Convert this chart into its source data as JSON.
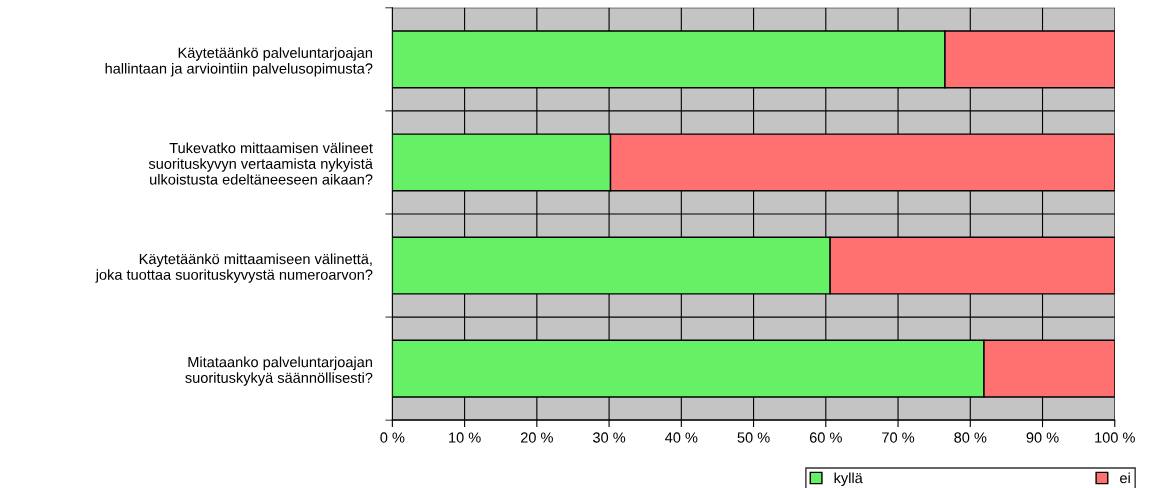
{
  "chart_data": {
    "type": "bar",
    "orientation": "horizontal",
    "stacked": true,
    "categories": [
      "Käytetäänkö palveluntarjoajan\nhallintaan ja arviointiin palvelusopimusta?",
      "Tukevatko mittaamisen välineet\nsuorituskyvyn vertaamista nykyistä\nulkoistusta edeltäneeseen aikaan?",
      "Käytetäänkö mittaamiseen välinettä,\njoka tuottaa suorituskyvystä numeroarvon?",
      "Mitataanko palveluntarjoajan\nsuorituskykyä säännöllisesti?"
    ],
    "series": [
      {
        "name": "kyllä",
        "color": "#66f066",
        "values": [
          76.5,
          30.2,
          60.6,
          81.9
        ]
      },
      {
        "name": "ei",
        "color": "#ff7070",
        "values": [
          23.5,
          69.8,
          39.4,
          18.1
        ]
      }
    ],
    "xlim": [
      0,
      100
    ],
    "xticks": [
      {
        "value": 0,
        "label": "0 %"
      },
      {
        "value": 10,
        "label": "10 %"
      },
      {
        "value": 20,
        "label": "20 %"
      },
      {
        "value": 30,
        "label": "30 %"
      },
      {
        "value": 40,
        "label": "40 %"
      },
      {
        "value": 50,
        "label": "50 %"
      },
      {
        "value": 60,
        "label": "60 %"
      },
      {
        "value": 70,
        "label": "70 %"
      },
      {
        "value": 80,
        "label": "80 %"
      },
      {
        "value": 90,
        "label": "90 %"
      },
      {
        "value": 100,
        "label": "100 %"
      }
    ],
    "grid": "x",
    "legend": "bottom right"
  }
}
